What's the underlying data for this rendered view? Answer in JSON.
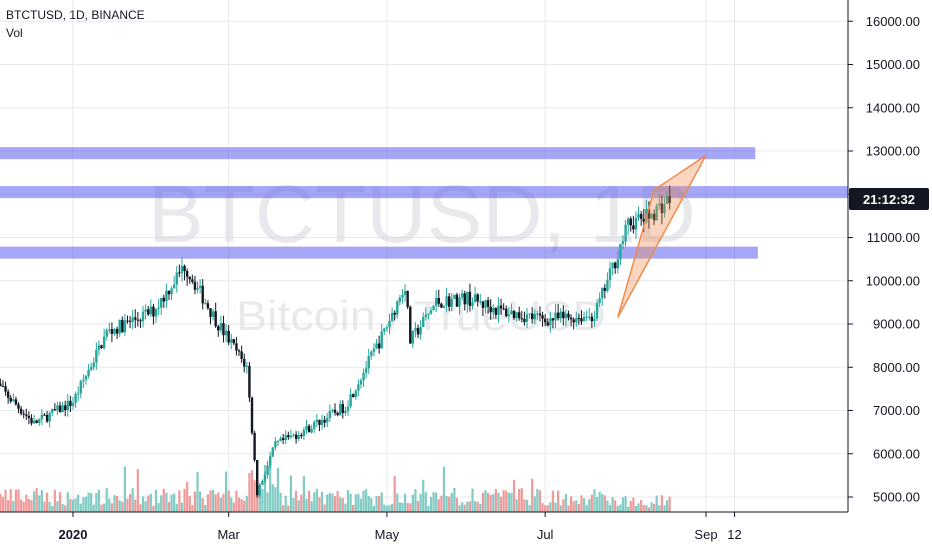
{
  "header": {
    "symbol_line": "BTCTUSD, 1D, BINANCE",
    "indicator": "Vol"
  },
  "watermark": {
    "symbol": "BTCTUSD, 1D",
    "description": "Bitcoin / TrueUSD"
  },
  "price_label": "21:12:32",
  "colors": {
    "up": "#26a69a",
    "down": "#131722",
    "up_volume": "#80cbc4",
    "down_volume": "#ef9a9a",
    "band": "#5c5cf0",
    "wedge": "#f08a4b",
    "grid": "#e6e8ee"
  },
  "chart_data": {
    "type": "candlestick",
    "x_axis": {
      "tick_labels": [
        "2020",
        "Mar",
        "May",
        "Jul",
        "Sep",
        "12"
      ]
    },
    "y_axis": {
      "tick_labels": [
        "5000.00",
        "6000.00",
        "7000.00",
        "8000.00",
        "9000.00",
        "10000.00",
        "11000.00",
        "12000.00",
        "13000.00",
        "14000.00",
        "15000.00",
        "16000.00"
      ],
      "range": [
        4700,
        16500
      ]
    },
    "horizontal_bands": [
      {
        "price": 12950,
        "extends_to": "Sep 20"
      },
      {
        "price": 12050,
        "extends_to": "right edge"
      },
      {
        "price": 10650,
        "extends_to": "Sep 21"
      }
    ],
    "wedge_drawing": {
      "points": [
        {
          "date": "Jul 29",
          "price": 9150
        },
        {
          "date": "Aug 12",
          "price": 12100
        },
        {
          "date": "Sep 1",
          "price": 12900
        }
      ]
    },
    "price_anchors": [
      {
        "date": "Dec 1",
        "price": 7700
      },
      {
        "date": "Dec 17",
        "price": 6700
      },
      {
        "date": "Jan 1",
        "price": 7200
      },
      {
        "date": "Jan 14",
        "price": 8800
      },
      {
        "date": "Feb 1",
        "price": 9300
      },
      {
        "date": "Feb 13",
        "price": 10350
      },
      {
        "date": "Feb 26",
        "price": 9000
      },
      {
        "date": "Mar 8",
        "price": 8000
      },
      {
        "date": "Mar 12",
        "price": 5100
      },
      {
        "date": "Mar 19",
        "price": 6200
      },
      {
        "date": "Apr 1",
        "price": 6600
      },
      {
        "date": "Apr 15",
        "price": 7100
      },
      {
        "date": "Apr 29",
        "price": 8700
      },
      {
        "date": "May 8",
        "price": 9900
      },
      {
        "date": "May 10",
        "price": 8600
      },
      {
        "date": "May 20",
        "price": 9500
      },
      {
        "date": "Jun 1",
        "price": 9600
      },
      {
        "date": "Jun 14",
        "price": 9300
      },
      {
        "date": "Jul 1",
        "price": 9100
      },
      {
        "date": "Jul 20",
        "price": 9200
      },
      {
        "date": "Jul 27",
        "price": 10300
      },
      {
        "date": "Aug 2",
        "price": 11300
      },
      {
        "date": "Aug 10",
        "price": 11500
      },
      {
        "date": "Aug 18",
        "price": 11900
      }
    ]
  }
}
